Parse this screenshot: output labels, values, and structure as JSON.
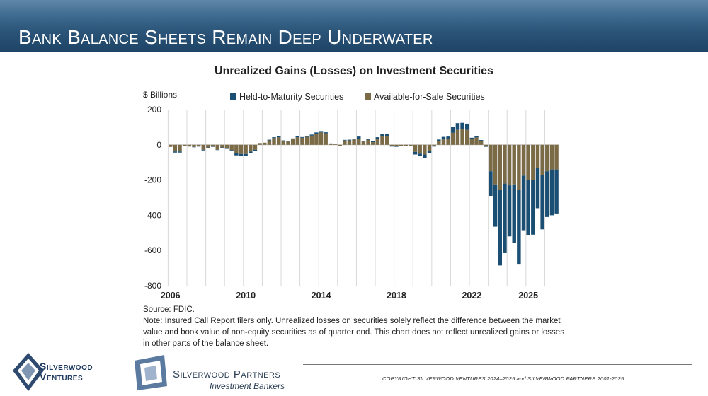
{
  "header": {
    "title": "Bank Balance Sheets Remain Deep Underwater"
  },
  "chart_data": {
    "type": "bar",
    "stacked": true,
    "title": "Unrealized Gains (Losses) on Investment Securities",
    "ylabel": "$ Billions",
    "ylim": [
      -800,
      200
    ],
    "yticks": [
      200,
      0,
      -200,
      -400,
      -600,
      -800
    ],
    "xtick_labels": [
      "2006",
      "2010",
      "2014",
      "2018",
      "2022",
      "2025"
    ],
    "legend": [
      "Held-to-Maturity Securities",
      "Available-for-Sale Securities"
    ],
    "colors": {
      "htm": "#1a4e72",
      "afs": "#7a6a45"
    },
    "period_start": "2006Q1",
    "series": [
      {
        "name": "Available-for-Sale Securities",
        "values": [
          -12,
          -38,
          -38,
          -5,
          -10,
          -12,
          -8,
          -28,
          -15,
          -10,
          -28,
          -15,
          -20,
          -30,
          -48,
          -52,
          -52,
          -38,
          -28,
          10,
          12,
          25,
          38,
          42,
          22,
          18,
          32,
          42,
          40,
          45,
          52,
          62,
          70,
          65,
          8,
          3,
          -5,
          25,
          25,
          30,
          35,
          18,
          28,
          15,
          35,
          48,
          50,
          -8,
          -10,
          -5,
          -5,
          -5,
          -40,
          -50,
          -55,
          -35,
          -8,
          20,
          30,
          35,
          68,
          85,
          90,
          85,
          35,
          42,
          22,
          -10,
          -150,
          -225,
          -255,
          -220,
          -230,
          -225,
          -255,
          -175,
          -200,
          -200,
          -130,
          -170,
          -150,
          -140,
          -140
        ],
        "htm": [
          0,
          -6,
          -6,
          0,
          0,
          -2,
          -2,
          -4,
          -3,
          -2,
          -2,
          -3,
          -3,
          -3,
          -12,
          -12,
          -12,
          -10,
          -8,
          0,
          0,
          4,
          5,
          6,
          3,
          2,
          4,
          6,
          4,
          5,
          6,
          8,
          8,
          6,
          0,
          0,
          -3,
          3,
          4,
          5,
          12,
          4,
          5,
          5,
          8,
          12,
          12,
          -2,
          -2,
          -2,
          -2,
          -1,
          -15,
          -15,
          -20,
          -10,
          -2,
          10,
          15,
          12,
          35,
          38,
          35,
          35,
          5,
          8,
          5,
          -2,
          -140,
          -240,
          -430,
          -395,
          -290,
          -330,
          -425,
          -310,
          -315,
          -310,
          -230,
          -310,
          -260,
          -260,
          -250
        ]
      },
      {
        "name": "Held-to-Maturity Securities",
        "values": []
      }
    ]
  },
  "source": "Source: FDIC.",
  "note": "Note: Insured Call Report filers only. Unrealized losses on securities solely reflect the difference between the market value and book value of non-equity securities as of quarter end. This chart does not reflect unrealized gains or losses in other parts of the balance sheet.",
  "footer": {
    "copyright": "COPYRIGHT SILVERWOOD VENTURES 2024–2025 and SILVERWOOD PARTNERS 2001-2025",
    "logo1_line1": "Silverwood",
    "logo1_line2": "Ventures",
    "logo2_line1": "Silverwood Partners",
    "logo2_line2": "Investment Bankers"
  }
}
